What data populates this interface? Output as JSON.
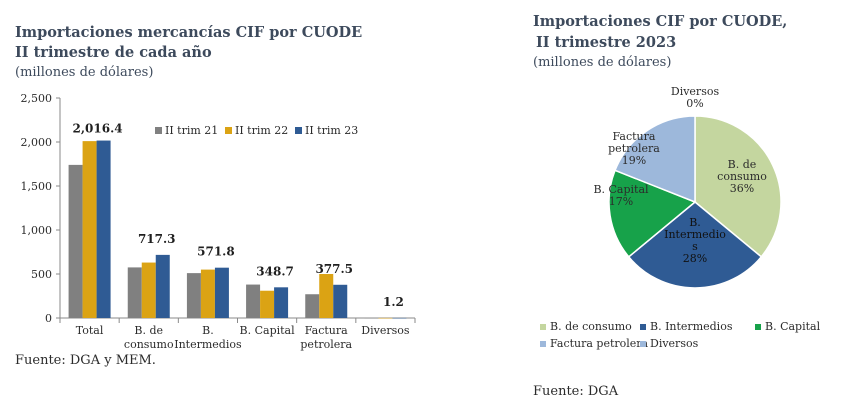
{
  "chart_data": [
    {
      "type": "bar",
      "title": "Importaciones mercancías CIF por CUODE",
      "subtitle": "II trimestre de cada año",
      "unit": "(millones de dólares)",
      "categories": [
        [
          "Total"
        ],
        [
          "B. de",
          "consumo"
        ],
        [
          "B.",
          "Intermedios"
        ],
        [
          "B. Capital"
        ],
        [
          "Factura",
          "petrolera"
        ],
        [
          "Diversos"
        ]
      ],
      "series": [
        {
          "name": "II trim 21",
          "color": "#808080",
          "values": [
            1740,
            575,
            510,
            380,
            270,
            1.0
          ]
        },
        {
          "name": "II trim 22",
          "color": "#dba314",
          "values": [
            2010,
            630,
            550,
            310,
            500,
            1.0
          ]
        },
        {
          "name": "II trim 23",
          "color": "#2f5b94",
          "values": [
            2016.4,
            717.3,
            571.8,
            348.7,
            377.5,
            1.2
          ]
        }
      ],
      "data_labels": [
        "2,016.4",
        "717.3",
        "571.8",
        "348.7",
        "377.5",
        "1.2"
      ],
      "yticks": [
        "0",
        "500",
        "1,000",
        "1,500",
        "2,000",
        "2,500"
      ],
      "ylim": [
        0,
        2500
      ],
      "legend_position": "top-right",
      "source": "Fuente: DGA y MEM."
    },
    {
      "type": "pie",
      "title_line1": "Importaciones CIF por CUODE,",
      "title_line2": "II trimestre 2023",
      "unit": "(millones de dólares)",
      "slices": [
        {
          "name": "B. de consumo",
          "label": [
            "B. de",
            "consumo",
            "36%"
          ],
          "value": 36,
          "color": "#c4d69f"
        },
        {
          "name": "B. Intermedios",
          "label": [
            "B.",
            "Intermedio",
            "s",
            "28%"
          ],
          "value": 28,
          "color": "#2f5b94"
        },
        {
          "name": "B. Capital",
          "label": [
            "B. Capital",
            "17%"
          ],
          "value": 17,
          "color": "#17a24a"
        },
        {
          "name": "Factura petrolera",
          "label": [
            "Factura",
            "petrolera",
            "19%"
          ],
          "value": 19,
          "color": "#9db8db"
        },
        {
          "name": "Diversos",
          "label": [
            "Diversos",
            "0%"
          ],
          "value": 0,
          "color": "#9db8db"
        }
      ],
      "legend": [
        "B. de consumo",
        "B. Intermedios",
        "B. Capital",
        "Factura petrolera",
        "Diversos"
      ],
      "legend_colors": [
        "#c4d69f",
        "#2f5b94",
        "#17a24a",
        "#9db8db",
        "#9db8db"
      ],
      "source": "Fuente: DGA"
    }
  ]
}
